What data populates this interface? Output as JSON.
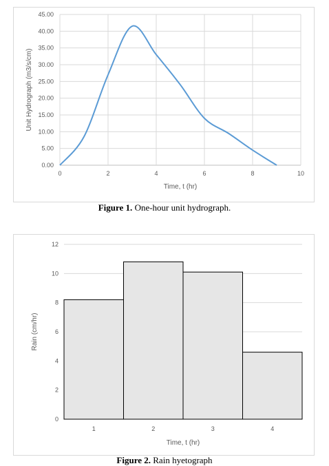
{
  "figure1": {
    "caption_label": "Figure 1.",
    "caption_text": " One-hour unit hydrograph.",
    "chart_data": {
      "type": "line",
      "xlabel": "Time, t (hr)",
      "ylabel": "Unit Hydrograph (m3/s/cm)",
      "xlim": [
        0,
        10
      ],
      "ylim": [
        0,
        45
      ],
      "xticks": [
        "0",
        "2",
        "4",
        "6",
        "8",
        "10"
      ],
      "yticks": [
        "0.00",
        "5.00",
        "10.00",
        "15.00",
        "20.00",
        "25.00",
        "30.00",
        "35.00",
        "40.00",
        "45.00"
      ],
      "grid": true,
      "series_color": "#5b9bd5",
      "x": [
        0,
        1,
        2,
        3,
        4,
        5,
        6,
        7,
        8,
        9
      ],
      "y": [
        0,
        8.5,
        27,
        41.5,
        33,
        24,
        14,
        9.5,
        4.5,
        0
      ]
    }
  },
  "figure2": {
    "caption_label": "Figure 2.",
    "caption_text": " Rain hyetograph",
    "chart_data": {
      "type": "bar",
      "xlabel": "Time, t (hr)",
      "ylabel": "Rain (cm/hr)",
      "ylim": [
        0,
        12
      ],
      "yticks": [
        "0",
        "2",
        "4",
        "6",
        "8",
        "10",
        "12"
      ],
      "categories": [
        "1",
        "2",
        "3",
        "4"
      ],
      "values": [
        8.2,
        10.8,
        10.1,
        4.6
      ],
      "grid": true,
      "bar_fill": "#e6e6e6",
      "bar_stroke": "#000000"
    }
  }
}
